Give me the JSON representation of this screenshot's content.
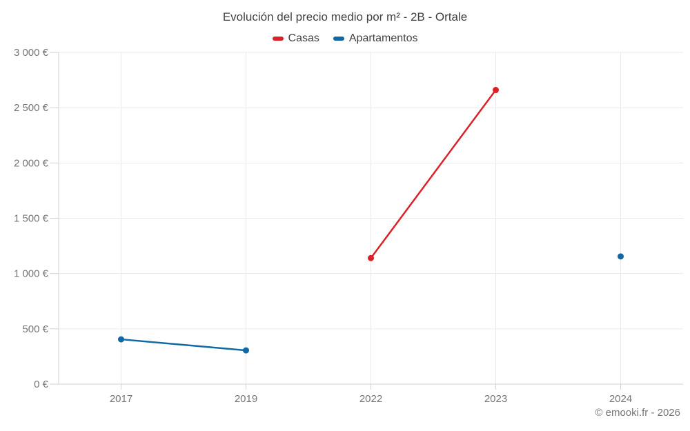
{
  "header": {
    "title": "Evolución del precio medio por m² - 2B - Ortale"
  },
  "legend": {
    "items": [
      {
        "label": "Casas",
        "color": "#db2128"
      },
      {
        "label": "Apartamentos",
        "color": "#1069a4"
      }
    ]
  },
  "footer": {
    "credit": "© emooki.fr - 2026"
  },
  "colors": {
    "grid": "#eaeaea",
    "axis": "#d2d2d2",
    "tick": "#d2d2d2",
    "axis_text": "#757575",
    "title_text": "#424242",
    "casas": "#db2128",
    "apartamentos": "#1069a4"
  },
  "chart_data": {
    "type": "line",
    "title": "Evolución del precio medio por m² - 2B - Ortale",
    "xlabel": "",
    "ylabel": "",
    "categories": [
      "2017",
      "2019",
      "2022",
      "2023",
      "2024"
    ],
    "series": [
      {
        "name": "Casas",
        "color": "#db2128",
        "values": [
          null,
          null,
          1140,
          2660,
          null
        ]
      },
      {
        "name": "Apartamentos",
        "color": "#1069a4",
        "values": [
          405,
          305,
          null,
          null,
          1155
        ]
      }
    ],
    "ylim": [
      0,
      3000
    ],
    "y_ticks": [
      0,
      500,
      1000,
      1500,
      2000,
      2500,
      3000
    ],
    "y_tick_labels": [
      "0 €",
      "500 €",
      "1 000 €",
      "1 500 €",
      "2 000 €",
      "2 500 €",
      "3 000 €"
    ],
    "grid": true,
    "legend_position": "top",
    "point_radius": 4.5,
    "line_width": 2.5
  }
}
